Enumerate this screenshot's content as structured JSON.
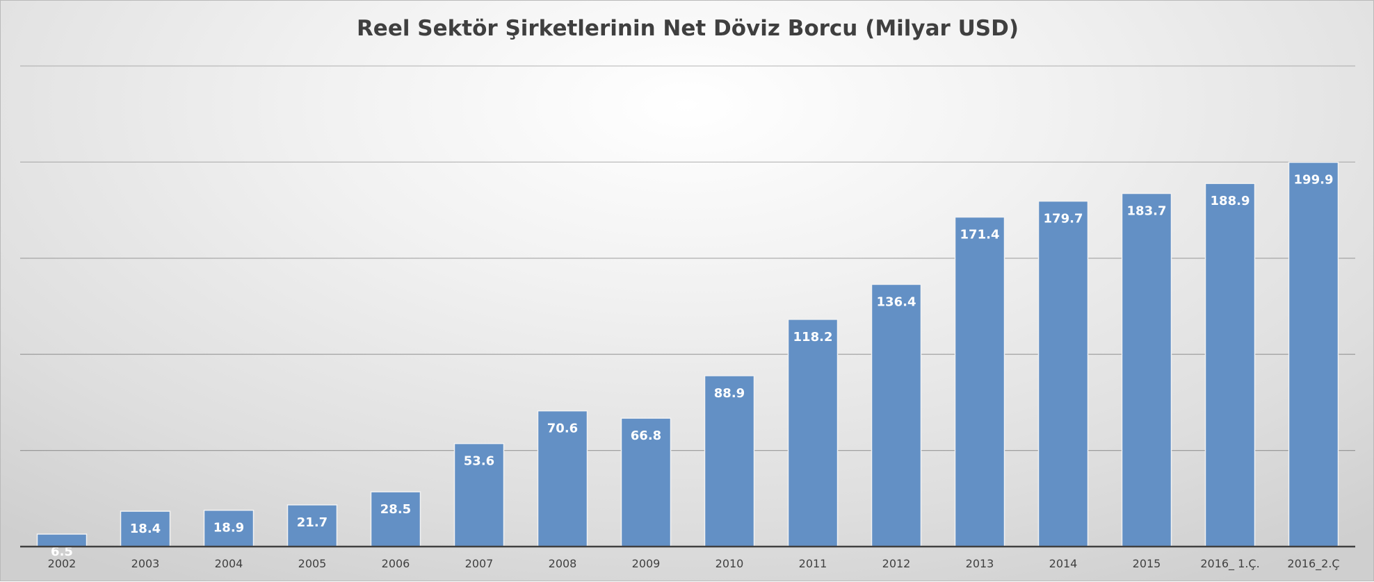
{
  "chart_data": {
    "type": "bar",
    "title": "Reel Sektör Şirketlerinin Net Döviz Borcu (Milyar USD)",
    "categories": [
      "2002",
      "2003",
      "2004",
      "2005",
      "2006",
      "2007",
      "2008",
      "2009",
      "2010",
      "2011",
      "2012",
      "2013",
      "2014",
      "2015",
      "2016_ 1.Ç.",
      "2016_2.Ç"
    ],
    "values": [
      6.5,
      18.4,
      18.9,
      21.7,
      28.5,
      53.6,
      70.6,
      66.8,
      88.9,
      118.2,
      136.4,
      171.4,
      179.7,
      183.7,
      188.9,
      199.9
    ],
    "data_labels": [
      "6.5",
      "18.4",
      "18.9",
      "21.7",
      "28.5",
      "53.6",
      "70.6",
      "66.8",
      "88.9",
      "118.2",
      "136.4",
      "171.4",
      "179.7",
      "183.7",
      "188.9",
      "199.9"
    ],
    "xlabel": "",
    "ylabel": "",
    "ylim": [
      0,
      250
    ],
    "gridlines": [
      50,
      100,
      150,
      200,
      250
    ],
    "grid": true,
    "legend": "none",
    "bar_color": "#6390C5",
    "bar_outline_color": "#F2F2F2",
    "axis_line_color": "#404040"
  }
}
